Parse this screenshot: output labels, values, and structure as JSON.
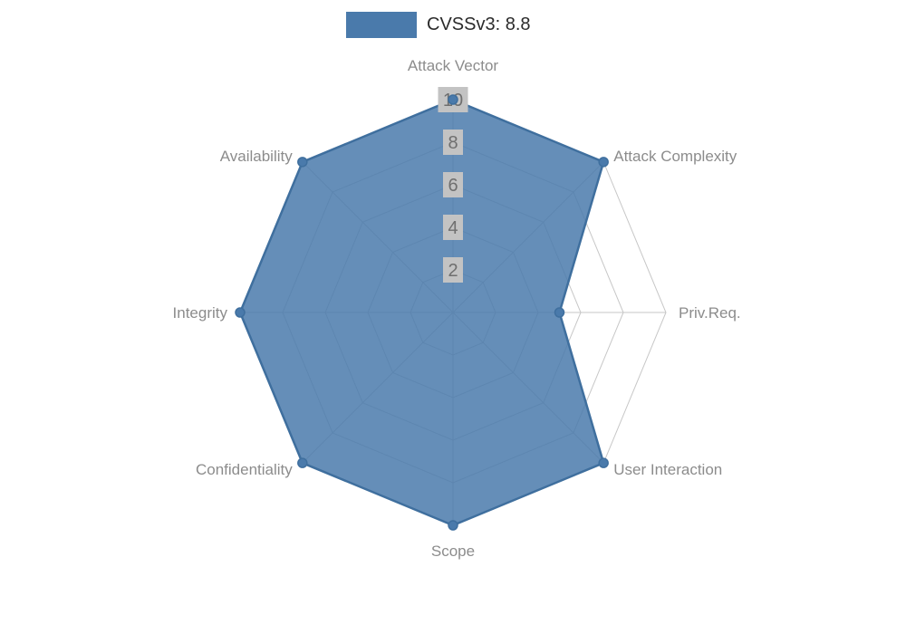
{
  "legend": {
    "label": "CVSSv3: 8.8"
  },
  "chart_data": {
    "type": "radar",
    "title": "CVSSv3: 8.8",
    "categories": [
      "Attack Vector",
      "Attack Complexity",
      "Priv.Req.",
      "User Interaction",
      "Scope",
      "Confidentiality",
      "Integrity",
      "Availability"
    ],
    "series": [
      {
        "name": "CVSSv3: 8.8",
        "values": [
          10,
          10,
          5,
          10,
          10,
          10,
          10,
          10
        ]
      }
    ],
    "radial_ticks": [
      "2",
      "4",
      "6",
      "8",
      "10"
    ],
    "rmax": 10,
    "grid": true,
    "legend_position": "top-center",
    "colors": {
      "series_fill": "#4a7aab",
      "series_stroke": "#3f6f9e",
      "grid_line": "#c7c7c7",
      "axis_label": "#8c8c8c",
      "tick_text": "#6f6f6f",
      "tick_box_bg": "#c3c3c3",
      "legend_text": "#2b2b2b",
      "background": "#ffffff"
    }
  }
}
